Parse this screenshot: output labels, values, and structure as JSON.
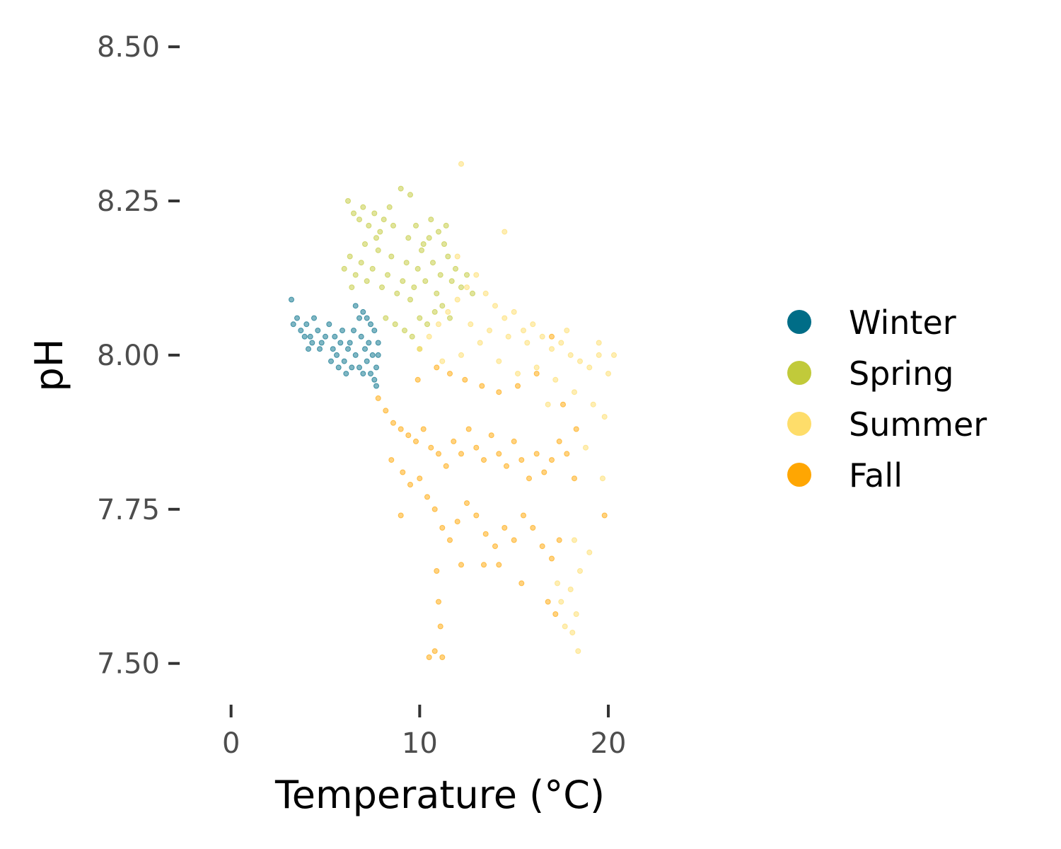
{
  "chart_data": {
    "type": "scatter",
    "title": "",
    "xlabel": "Temperature (°C)",
    "ylabel": "pH",
    "xlim": [
      -2.5,
      24.5
    ],
    "ylim": [
      7.44,
      8.53
    ],
    "x_ticks": [
      0,
      10,
      20
    ],
    "x_tick_labels": [
      "0",
      "10",
      "20"
    ],
    "y_ticks": [
      7.5,
      7.75,
      8.0,
      8.25,
      8.5
    ],
    "y_tick_labels": [
      "7.50",
      "7.75",
      "8.00",
      "8.25",
      "8.50"
    ],
    "grid": false,
    "legend_position": "right",
    "point_alpha": 0.5,
    "series": [
      {
        "name": "Winter",
        "color": "#006d87",
        "points": [
          [
            3.2,
            8.09
          ],
          [
            3.5,
            8.06
          ],
          [
            3.7,
            8.04
          ],
          [
            4.0,
            8.05
          ],
          [
            4.2,
            8.03
          ],
          [
            4.4,
            8.06
          ],
          [
            4.6,
            8.04
          ],
          [
            4.8,
            8.02
          ],
          [
            5.0,
            8.03
          ],
          [
            5.2,
            8.05
          ],
          [
            5.4,
            8.01
          ],
          [
            5.6,
            8.0
          ],
          [
            5.8,
            8.02
          ],
          [
            6.0,
            7.99
          ],
          [
            6.2,
            8.01
          ],
          [
            6.4,
            7.98
          ],
          [
            6.6,
            8.0
          ],
          [
            6.8,
            7.98
          ],
          [
            7.0,
            7.97
          ],
          [
            7.2,
            7.99
          ],
          [
            7.4,
            7.97
          ],
          [
            7.6,
            7.96
          ],
          [
            7.7,
            7.98
          ],
          [
            7.8,
            8.0
          ],
          [
            7.8,
            8.02
          ],
          [
            7.6,
            8.04
          ],
          [
            7.4,
            8.05
          ],
          [
            7.2,
            8.06
          ],
          [
            7.0,
            8.07
          ],
          [
            6.8,
            8.06
          ],
          [
            6.6,
            8.08
          ],
          [
            6.9,
            8.03
          ],
          [
            7.1,
            8.01
          ],
          [
            7.3,
            8.02
          ],
          [
            7.5,
            8.0
          ],
          [
            6.5,
            8.04
          ],
          [
            6.3,
            8.02
          ],
          [
            5.9,
            8.04
          ],
          [
            5.5,
            8.03
          ],
          [
            4.3,
            8.02
          ],
          [
            3.9,
            8.03
          ],
          [
            4.7,
            8.01
          ],
          [
            5.3,
            7.99
          ],
          [
            5.7,
            7.98
          ],
          [
            6.1,
            7.97
          ],
          [
            7.7,
            7.95
          ],
          [
            3.3,
            8.05
          ],
          [
            4.1,
            8.01
          ]
        ]
      },
      {
        "name": "Spring",
        "color": "#c1ca3a",
        "points": [
          [
            6.2,
            8.25
          ],
          [
            6.5,
            8.23
          ],
          [
            6.8,
            8.22
          ],
          [
            7.0,
            8.24
          ],
          [
            7.3,
            8.21
          ],
          [
            7.6,
            8.23
          ],
          [
            7.9,
            8.2
          ],
          [
            8.1,
            8.22
          ],
          [
            8.4,
            8.24
          ],
          [
            8.6,
            8.21
          ],
          [
            9.0,
            8.27
          ],
          [
            6.0,
            8.14
          ],
          [
            6.3,
            8.16
          ],
          [
            6.6,
            8.13
          ],
          [
            6.9,
            8.15
          ],
          [
            7.2,
            8.12
          ],
          [
            7.5,
            8.14
          ],
          [
            7.8,
            8.17
          ],
          [
            8.0,
            8.11
          ],
          [
            8.3,
            8.13
          ],
          [
            8.5,
            8.16
          ],
          [
            8.8,
            8.1
          ],
          [
            9.1,
            8.12
          ],
          [
            9.3,
            8.15
          ],
          [
            9.5,
            8.09
          ],
          [
            9.7,
            8.11
          ],
          [
            9.9,
            8.14
          ],
          [
            10.1,
            8.17
          ],
          [
            10.3,
            8.12
          ],
          [
            10.5,
            8.19
          ],
          [
            10.7,
            8.15
          ],
          [
            10.9,
            8.1
          ],
          [
            11.1,
            8.13
          ],
          [
            11.3,
            8.18
          ],
          [
            11.5,
            8.16
          ],
          [
            11.7,
            8.12
          ],
          [
            11.9,
            8.14
          ],
          [
            12.2,
            8.11
          ],
          [
            12.5,
            8.13
          ],
          [
            8.2,
            8.06
          ],
          [
            8.7,
            8.05
          ],
          [
            9.2,
            8.04
          ],
          [
            9.6,
            8.03
          ],
          [
            10.0,
            8.06
          ],
          [
            10.4,
            8.05
          ],
          [
            10.8,
            8.07
          ],
          [
            11.2,
            8.08
          ],
          [
            11.6,
            8.06
          ],
          [
            9.4,
            8.19
          ],
          [
            9.8,
            8.21
          ],
          [
            10.2,
            8.18
          ],
          [
            10.6,
            8.22
          ],
          [
            11.0,
            8.2
          ],
          [
            11.4,
            8.21
          ],
          [
            7.1,
            8.18
          ],
          [
            7.7,
            8.19
          ],
          [
            9.5,
            8.26
          ],
          [
            12.8,
            8.1
          ],
          [
            10.0,
            8.01
          ],
          [
            6.4,
            8.11
          ]
        ]
      },
      {
        "name": "Summer",
        "color": "#fedd6a",
        "points": [
          [
            10.0,
            8.01
          ],
          [
            10.5,
            8.03
          ],
          [
            11.0,
            8.05
          ],
          [
            11.5,
            8.07
          ],
          [
            12.0,
            8.09
          ],
          [
            12.5,
            8.11
          ],
          [
            13.0,
            8.13
          ],
          [
            13.5,
            8.1
          ],
          [
            14.0,
            8.08
          ],
          [
            14.5,
            8.06
          ],
          [
            15.0,
            8.07
          ],
          [
            15.5,
            8.04
          ],
          [
            16.0,
            8.05
          ],
          [
            16.5,
            8.03
          ],
          [
            17.0,
            8.01
          ],
          [
            17.5,
            8.02
          ],
          [
            18.0,
            8.0
          ],
          [
            18.5,
            7.99
          ],
          [
            19.0,
            7.98
          ],
          [
            19.5,
            8.0
          ],
          [
            20.0,
            7.97
          ],
          [
            20.3,
            8.0
          ],
          [
            11.2,
            7.99
          ],
          [
            12.2,
            8.0
          ],
          [
            13.2,
            8.02
          ],
          [
            14.2,
            7.99
          ],
          [
            15.2,
            7.97
          ],
          [
            16.2,
            7.98
          ],
          [
            17.2,
            7.96
          ],
          [
            18.2,
            7.94
          ],
          [
            19.2,
            7.92
          ],
          [
            19.8,
            7.9
          ],
          [
            12.7,
            8.05
          ],
          [
            13.7,
            8.04
          ],
          [
            14.7,
            8.03
          ],
          [
            15.7,
            8.02
          ],
          [
            12.0,
            8.16
          ],
          [
            14.5,
            8.2
          ],
          [
            17.8,
            8.04
          ],
          [
            19.5,
            8.02
          ],
          [
            18.2,
            7.7
          ],
          [
            18.5,
            7.65
          ],
          [
            18.0,
            7.62
          ],
          [
            17.5,
            7.6
          ],
          [
            18.3,
            7.58
          ],
          [
            18.1,
            7.55
          ],
          [
            18.4,
            7.52
          ],
          [
            17.7,
            7.56
          ],
          [
            19.0,
            7.68
          ],
          [
            17.3,
            7.63
          ],
          [
            12.2,
            8.31
          ],
          [
            18.8,
            7.85
          ],
          [
            19.7,
            7.8
          ],
          [
            16.8,
            7.92
          ]
        ]
      },
      {
        "name": "Fall",
        "color": "#ffa602",
        "points": [
          [
            7.8,
            7.93
          ],
          [
            8.2,
            7.91
          ],
          [
            8.6,
            7.89
          ],
          [
            9.0,
            7.88
          ],
          [
            9.4,
            7.87
          ],
          [
            9.8,
            7.86
          ],
          [
            10.2,
            7.88
          ],
          [
            10.6,
            7.85
          ],
          [
            11.0,
            7.84
          ],
          [
            11.4,
            7.82
          ],
          [
            11.8,
            7.86
          ],
          [
            12.2,
            7.84
          ],
          [
            12.6,
            7.88
          ],
          [
            13.0,
            7.85
          ],
          [
            13.4,
            7.83
          ],
          [
            13.8,
            7.87
          ],
          [
            14.2,
            7.84
          ],
          [
            14.6,
            7.82
          ],
          [
            15.0,
            7.86
          ],
          [
            15.4,
            7.83
          ],
          [
            15.8,
            7.8
          ],
          [
            16.2,
            7.84
          ],
          [
            16.6,
            7.81
          ],
          [
            17.0,
            7.83
          ],
          [
            17.4,
            7.86
          ],
          [
            17.8,
            7.84
          ],
          [
            18.2,
            7.8
          ],
          [
            9.1,
            7.81
          ],
          [
            9.5,
            7.79
          ],
          [
            10.0,
            7.8
          ],
          [
            10.4,
            7.77
          ],
          [
            10.8,
            7.75
          ],
          [
            11.2,
            7.72
          ],
          [
            11.6,
            7.7
          ],
          [
            12.0,
            7.73
          ],
          [
            12.5,
            7.76
          ],
          [
            13.0,
            7.74
          ],
          [
            13.5,
            7.71
          ],
          [
            14.0,
            7.69
          ],
          [
            14.5,
            7.72
          ],
          [
            15.0,
            7.7
          ],
          [
            15.5,
            7.74
          ],
          [
            16.0,
            7.72
          ],
          [
            16.5,
            7.69
          ],
          [
            17.0,
            7.67
          ],
          [
            17.4,
            7.7
          ],
          [
            10.9,
            7.65
          ],
          [
            11.0,
            7.6
          ],
          [
            11.1,
            7.56
          ],
          [
            10.8,
            7.52
          ],
          [
            11.2,
            7.51
          ],
          [
            10.5,
            7.51
          ],
          [
            14.2,
            7.66
          ],
          [
            15.4,
            7.63
          ],
          [
            16.8,
            7.6
          ],
          [
            12.2,
            7.66
          ],
          [
            13.4,
            7.66
          ],
          [
            8.5,
            7.83
          ],
          [
            9.9,
            7.96
          ],
          [
            10.9,
            7.98
          ],
          [
            11.6,
            7.97
          ],
          [
            12.4,
            7.96
          ],
          [
            13.3,
            7.95
          ],
          [
            14.2,
            7.94
          ],
          [
            15.2,
            7.95
          ],
          [
            16.2,
            7.97
          ],
          [
            17.0,
            8.03
          ],
          [
            17.6,
            7.92
          ],
          [
            18.3,
            7.88
          ],
          [
            19.8,
            7.74
          ],
          [
            17.2,
            7.58
          ],
          [
            9.0,
            7.74
          ]
        ]
      }
    ]
  },
  "legend": {
    "items": [
      {
        "label": "Winter",
        "color": "#006d87"
      },
      {
        "label": "Spring",
        "color": "#c1ca3a"
      },
      {
        "label": "Summer",
        "color": "#fedd6a"
      },
      {
        "label": "Fall",
        "color": "#ffa602"
      }
    ]
  }
}
